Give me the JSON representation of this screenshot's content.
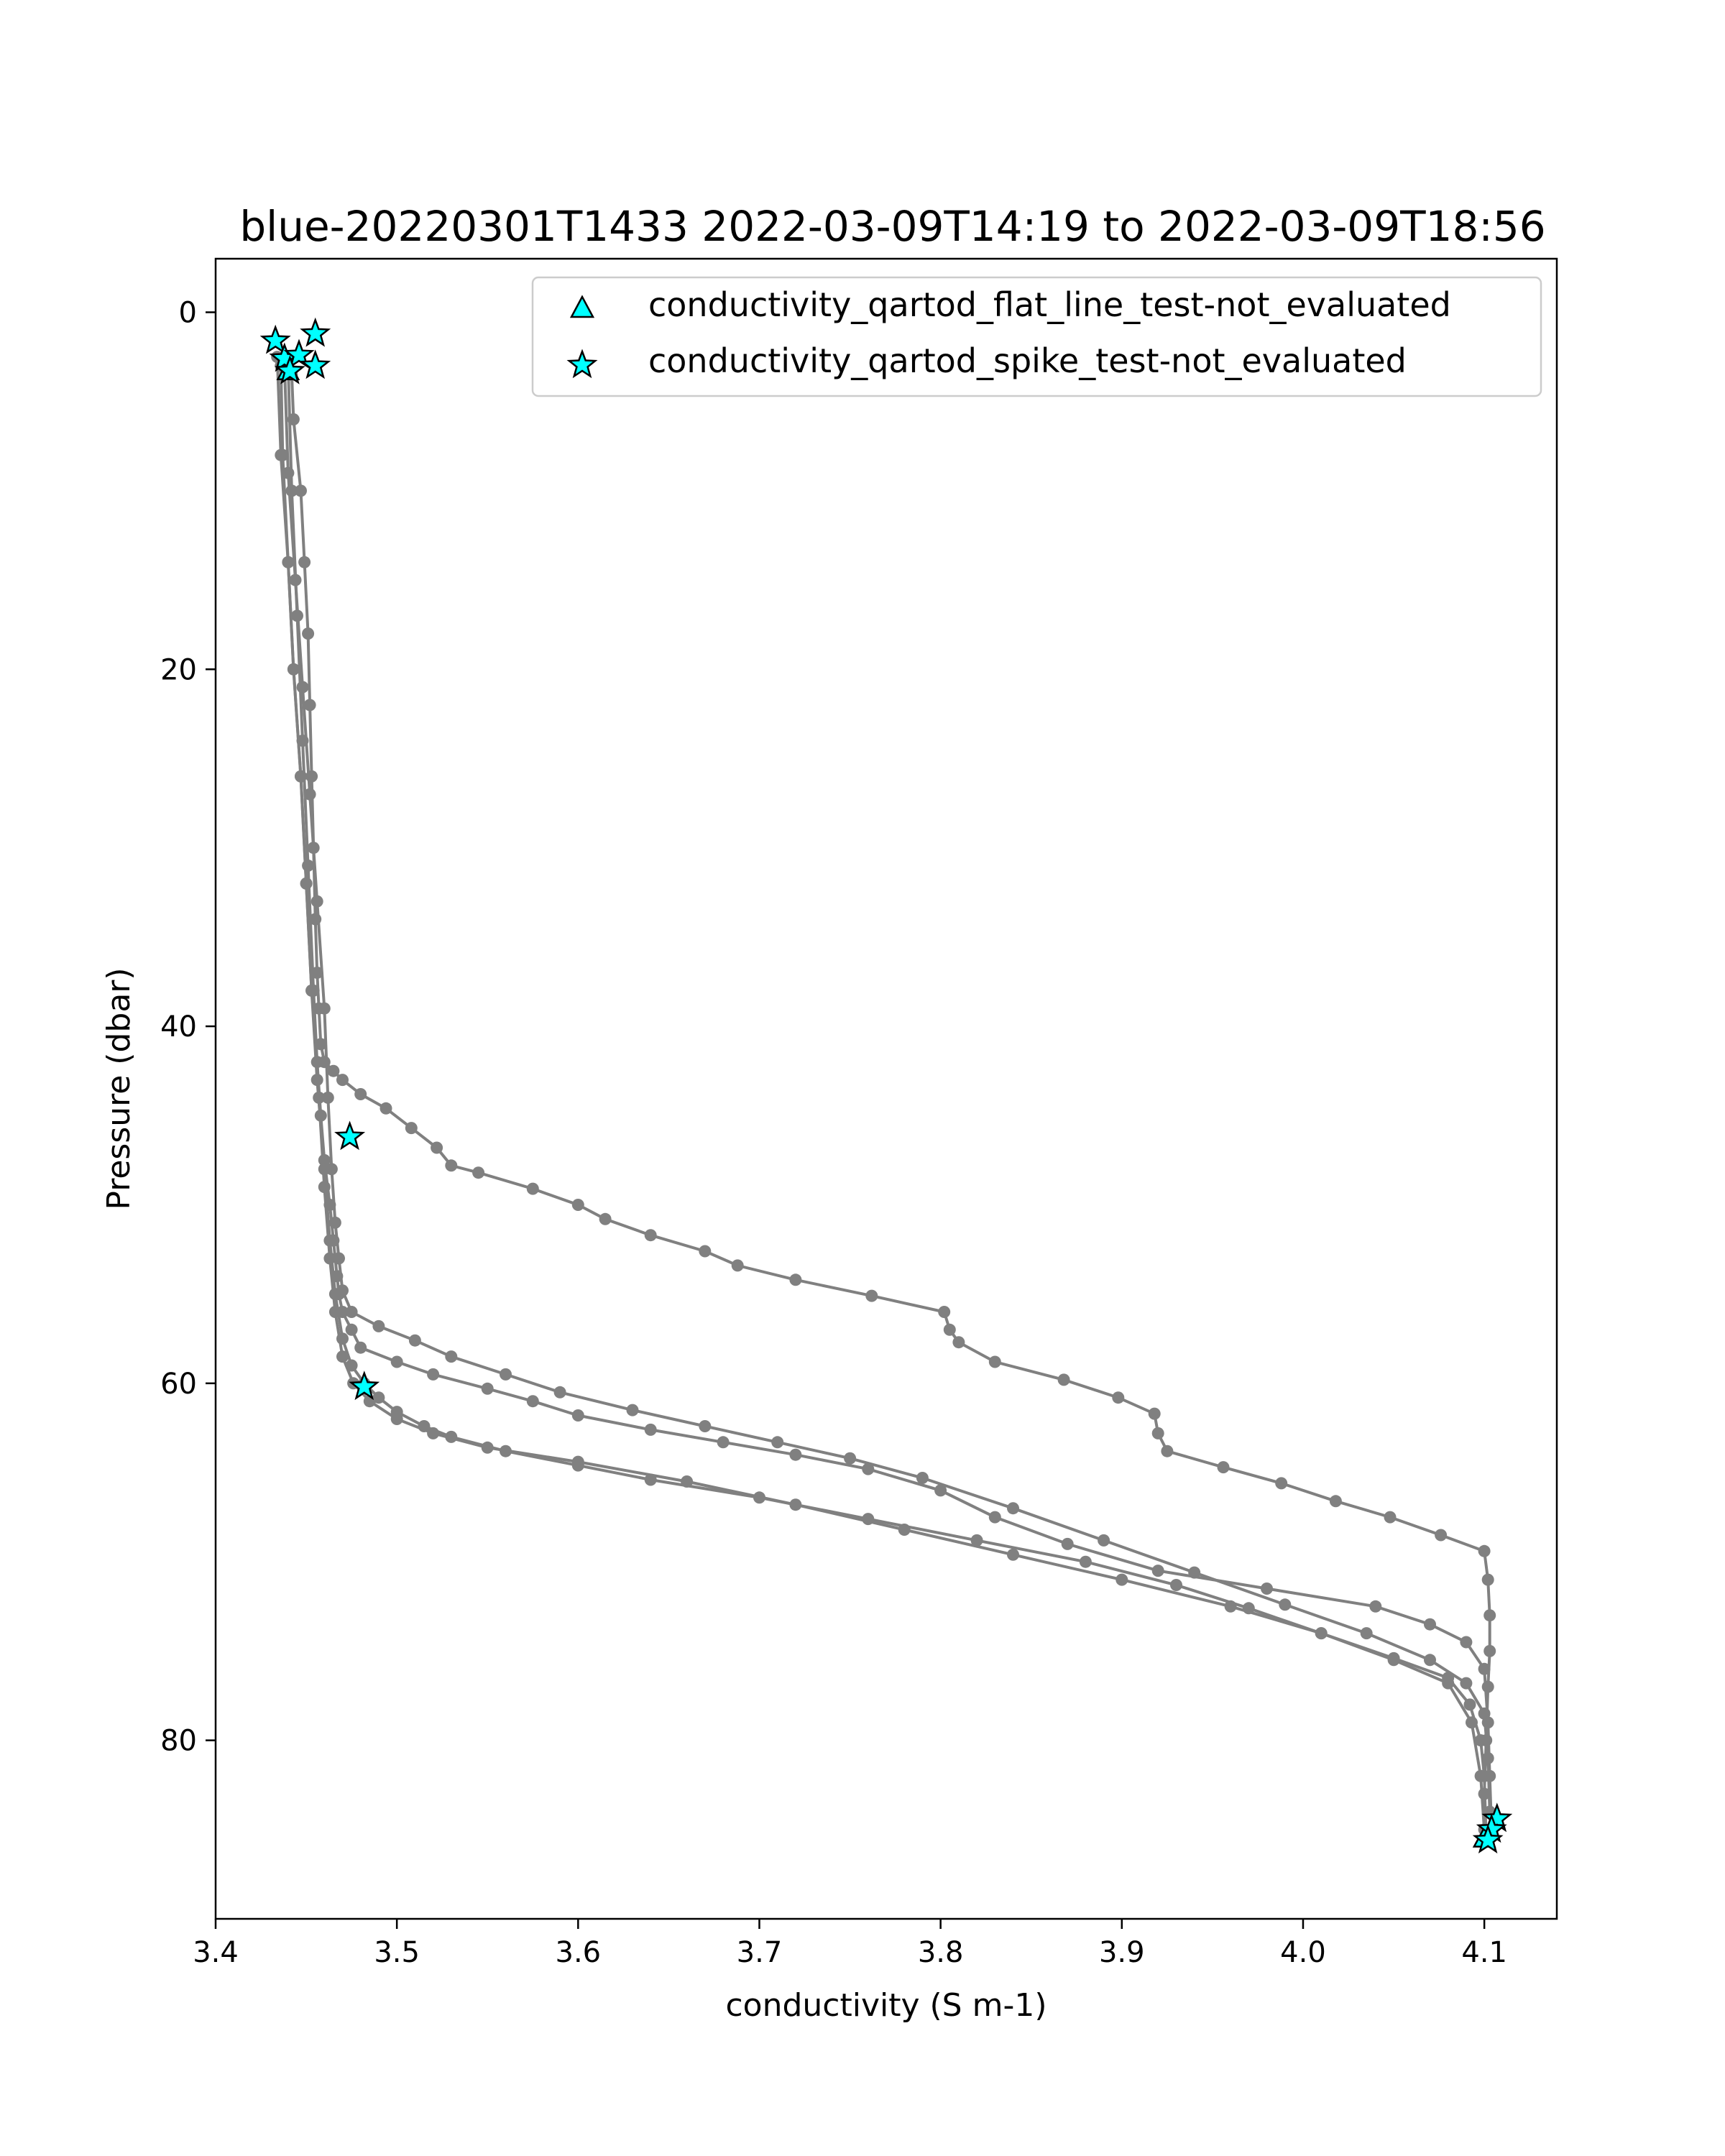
{
  "chart_data": {
    "type": "scatter",
    "title": "blue-20220301T1433 2022-03-09T14:19 to 2022-03-09T18:56",
    "xlabel": "conductivity (S m-1)",
    "ylabel": "Pressure (dbar)",
    "xlim": [
      3.4,
      4.14
    ],
    "ylim": [
      90,
      -3
    ],
    "y_inverted": true,
    "xticks": [
      3.4,
      3.5,
      3.6,
      3.7,
      3.8,
      3.9,
      4.0,
      4.1
    ],
    "xtick_labels": [
      "3.4",
      "3.5",
      "3.6",
      "3.7",
      "3.8",
      "3.9",
      "4.0",
      "4.1"
    ],
    "yticks": [
      0,
      20,
      40,
      60,
      80
    ],
    "ytick_labels": [
      "0",
      "20",
      "40",
      "60",
      "80"
    ],
    "grid": false,
    "legend_position": "top-right",
    "colors": {
      "profile": "#808080",
      "flag_fill": "#00ffff",
      "flag_edge": "#000000"
    },
    "series": [
      {
        "marker": "circle-line",
        "color": "#808080",
        "profiles": [
          {
            "x": [
              3.442,
              3.443,
              3.447,
              3.449,
              3.451,
              3.452,
              3.453,
              3.454,
              3.455,
              3.456,
              3.457,
              3.458,
              3.46,
              3.465,
              3.47,
              3.48,
              3.494,
              3.508,
              3.522,
              3.53,
              3.545,
              3.575,
              3.6,
              3.615,
              3.64,
              3.67,
              3.688,
              3.72,
              3.762,
              3.802,
              3.805,
              3.81,
              3.83,
              3.868,
              3.898,
              3.918,
              3.92,
              3.925,
              3.956,
              3.988,
              4.018,
              4.048,
              4.076,
              4.1,
              4.102,
              4.103,
              4.103,
              4.102,
              4.101,
              4.1
            ],
            "y": [
              3.5,
              6,
              10,
              14,
              18,
              22,
              26,
              30,
              34,
              37,
              39,
              41,
              42,
              42.5,
              43,
              43.8,
              44.6,
              45.7,
              46.8,
              47.8,
              48.2,
              49.1,
              50,
              50.8,
              51.7,
              52.6,
              53.4,
              54.2,
              55.1,
              56,
              57,
              57.7,
              58.8,
              59.8,
              60.8,
              61.7,
              62.8,
              63.8,
              64.7,
              65.6,
              66.6,
              67.5,
              68.5,
              69.4,
              71,
              73,
              75,
              77,
              80,
              83
            ]
          },
          {
            "x": [
              3.436,
              3.437,
              3.44,
              3.443,
              3.447,
              3.45,
              3.453,
              3.456,
              3.458,
              3.46,
              3.463,
              3.465,
              3.467,
              3.468,
              3.47,
              3.475,
              3.48,
              3.5,
              3.52,
              3.55,
              3.575,
              3.6,
              3.64,
              3.68,
              3.72,
              3.76,
              3.8,
              3.83,
              3.87,
              3.92,
              3.98,
              4.04,
              4.07,
              4.09,
              4.1,
              4.102,
              4.103,
              4.104
            ],
            "y": [
              3,
              8,
              14,
              20,
              26,
              32,
              38,
              42,
              45,
              47.5,
              50,
              52,
              54,
              55,
              56,
              57,
              58,
              58.8,
              59.5,
              60.3,
              61,
              61.8,
              62.6,
              63.3,
              64,
              64.8,
              66,
              67.5,
              69,
              70.5,
              71.5,
              72.5,
              73.5,
              74.5,
              76,
              79,
              82,
              85
            ]
          },
          {
            "x": [
              3.438,
              3.44,
              3.444,
              3.448,
              3.452,
              3.456,
              3.46,
              3.462,
              3.464,
              3.466,
              3.468,
              3.47,
              3.475,
              3.49,
              3.51,
              3.53,
              3.56,
              3.59,
              3.63,
              3.67,
              3.71,
              3.75,
              3.79,
              3.84,
              3.89,
              3.94,
              3.99,
              4.035,
              4.07,
              4.09,
              4.1,
              4.102,
              4.103
            ],
            "y": [
              3,
              9,
              15,
              21,
              27,
              33,
              39,
              44,
              48,
              51,
              53,
              54.8,
              56,
              56.8,
              57.6,
              58.5,
              59.5,
              60.5,
              61.5,
              62.4,
              63.3,
              64.2,
              65.3,
              67,
              68.8,
              70.6,
              72.4,
              74,
              75.5,
              76.8,
              78.5,
              81,
              84
            ]
          },
          {
            "x": [
              3.434,
              3.436,
              3.44,
              3.443,
              3.447,
              3.45,
              3.453,
              3.456,
              3.46,
              3.463,
              3.466,
              3.47,
              3.475,
              3.482,
              3.49,
              3.5,
              3.515,
              3.53,
              3.56,
              3.6,
              3.64,
              3.7,
              3.76,
              3.82,
              3.88,
              3.93,
              3.97,
              4.01,
              4.05,
              4.08,
              4.092,
              4.098,
              4.1,
              4.101
            ],
            "y": [
              2.5,
              8,
              14,
              20,
              26,
              32,
              38,
              43,
              48,
              52,
              55,
              57.5,
              59,
              60,
              60.8,
              61.6,
              62.4,
              63,
              63.8,
              64.6,
              65.4,
              66.4,
              67.6,
              68.8,
              70,
              71.3,
              72.6,
              74,
              75.4,
              76.5,
              78,
              80,
              82,
              85.5
            ]
          },
          {
            "x": [
              3.44,
              3.442,
              3.445,
              3.448,
              3.451,
              3.454,
              3.457,
              3.46,
              3.463,
              3.466,
              3.47,
              3.476,
              3.485,
              3.5,
              3.52,
              3.55,
              3.6,
              3.66,
              3.72,
              3.78,
              3.84,
              3.9,
              3.96,
              4.01,
              4.05,
              4.08,
              4.093,
              4.098,
              4.1
            ],
            "y": [
              3,
              10,
              17,
              24,
              31,
              38,
              44,
              49,
              53,
              56,
              58.5,
              60,
              61,
              62,
              62.8,
              63.6,
              64.4,
              65.5,
              66.8,
              68.2,
              69.6,
              71,
              72.5,
              74,
              75.5,
              76.8,
              79,
              82,
              85
            ]
          }
        ]
      },
      {
        "name": "conductivity_qartod_flat_line_test-not_evaluated",
        "marker": "triangle",
        "points": [
          [
            3.44,
            3.3
          ],
          [
            4.1,
            85.5
          ]
        ]
      },
      {
        "name": "conductivity_qartod_spike_test-not_evaluated",
        "marker": "star",
        "points": [
          [
            3.433,
            1.6
          ],
          [
            3.455,
            1.2
          ],
          [
            3.438,
            2.6
          ],
          [
            3.446,
            2.4
          ],
          [
            3.455,
            3.0
          ],
          [
            3.441,
            3.3
          ],
          [
            3.474,
            46.2
          ],
          [
            3.482,
            60.2
          ],
          [
            4.107,
            84.4
          ],
          [
            4.104,
            85.0
          ],
          [
            4.102,
            85.6
          ]
        ]
      }
    ]
  }
}
